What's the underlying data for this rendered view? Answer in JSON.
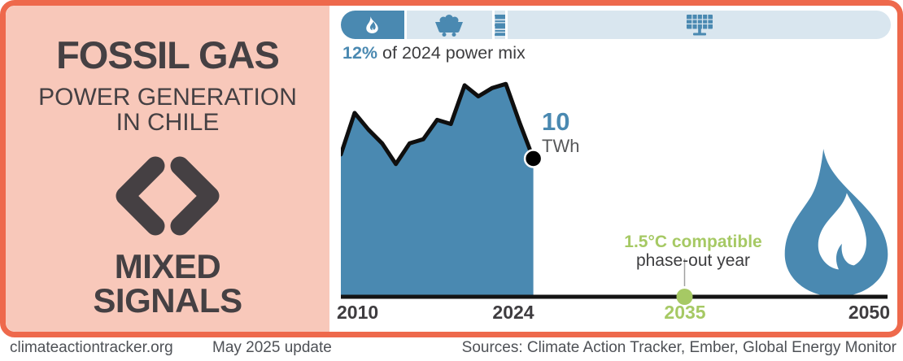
{
  "left_panel": {
    "title": "FOSSIL GAS",
    "subtitle_line1": "POWER GENERATION",
    "subtitle_line2": "IN CHILE",
    "rating_icon": "code-chevrons-icon",
    "rating_line1": "MIXED",
    "rating_line2": "SIGNALS"
  },
  "power_mix_bar": {
    "caption": {
      "value": "12%",
      "text": "of 2024 power mix"
    },
    "segments": [
      {
        "name": "gas",
        "icon": "flame-icon",
        "share_pct": 11.5,
        "highlighted": true
      },
      {
        "name": "coal",
        "icon": "coal-cart-icon",
        "share_pct": 15.5,
        "highlighted": false
      },
      {
        "name": "oil",
        "icon": "oil-barrel-icon",
        "share_pct": 2,
        "highlighted": false
      },
      {
        "name": "renewables-other",
        "icon": "solar-panel-icon",
        "share_pct": 71,
        "highlighted": false
      }
    ]
  },
  "chart_data": {
    "type": "area",
    "title": "Fossil gas power generation in Chile",
    "unit": "TWh",
    "x": [
      2010,
      2011,
      2012,
      2013,
      2014,
      2015,
      2016,
      2017,
      2018,
      2019,
      2020,
      2021,
      2022,
      2023,
      2024
    ],
    "values": [
      10.3,
      13.3,
      12.1,
      11.1,
      9.6,
      11.1,
      11.4,
      12.8,
      12.5,
      15.3,
      14.5,
      15.1,
      15.4,
      12.6,
      10.0
    ],
    "xlim": [
      2010,
      2050
    ],
    "ylim": [
      0,
      16.5
    ],
    "grid": false,
    "x_ticks": [
      "2010",
      "2024",
      "2035",
      "2050"
    ],
    "end_label": {
      "value": "10",
      "unit": "TWh"
    },
    "phase_out": {
      "year": 2035,
      "line1": "1.5°C compatible",
      "line2": "phase-out year"
    },
    "decoration_icon": "gas-flame-icon"
  },
  "footer": {
    "site": "climateactiontracker.org",
    "update": "May 2025 update",
    "sources": "Sources: Climate Action Tracker, Ember, Global Energy Monitor"
  },
  "colors": {
    "accent_orange": "#ee694c",
    "panel_pink": "#f8c8ba",
    "dark_text": "#454043",
    "blue": "#4a89b1",
    "light_blue": "#d9e6ef",
    "green": "#a6c964",
    "footer_text": "#4e5156",
    "line_black": "#141414"
  }
}
